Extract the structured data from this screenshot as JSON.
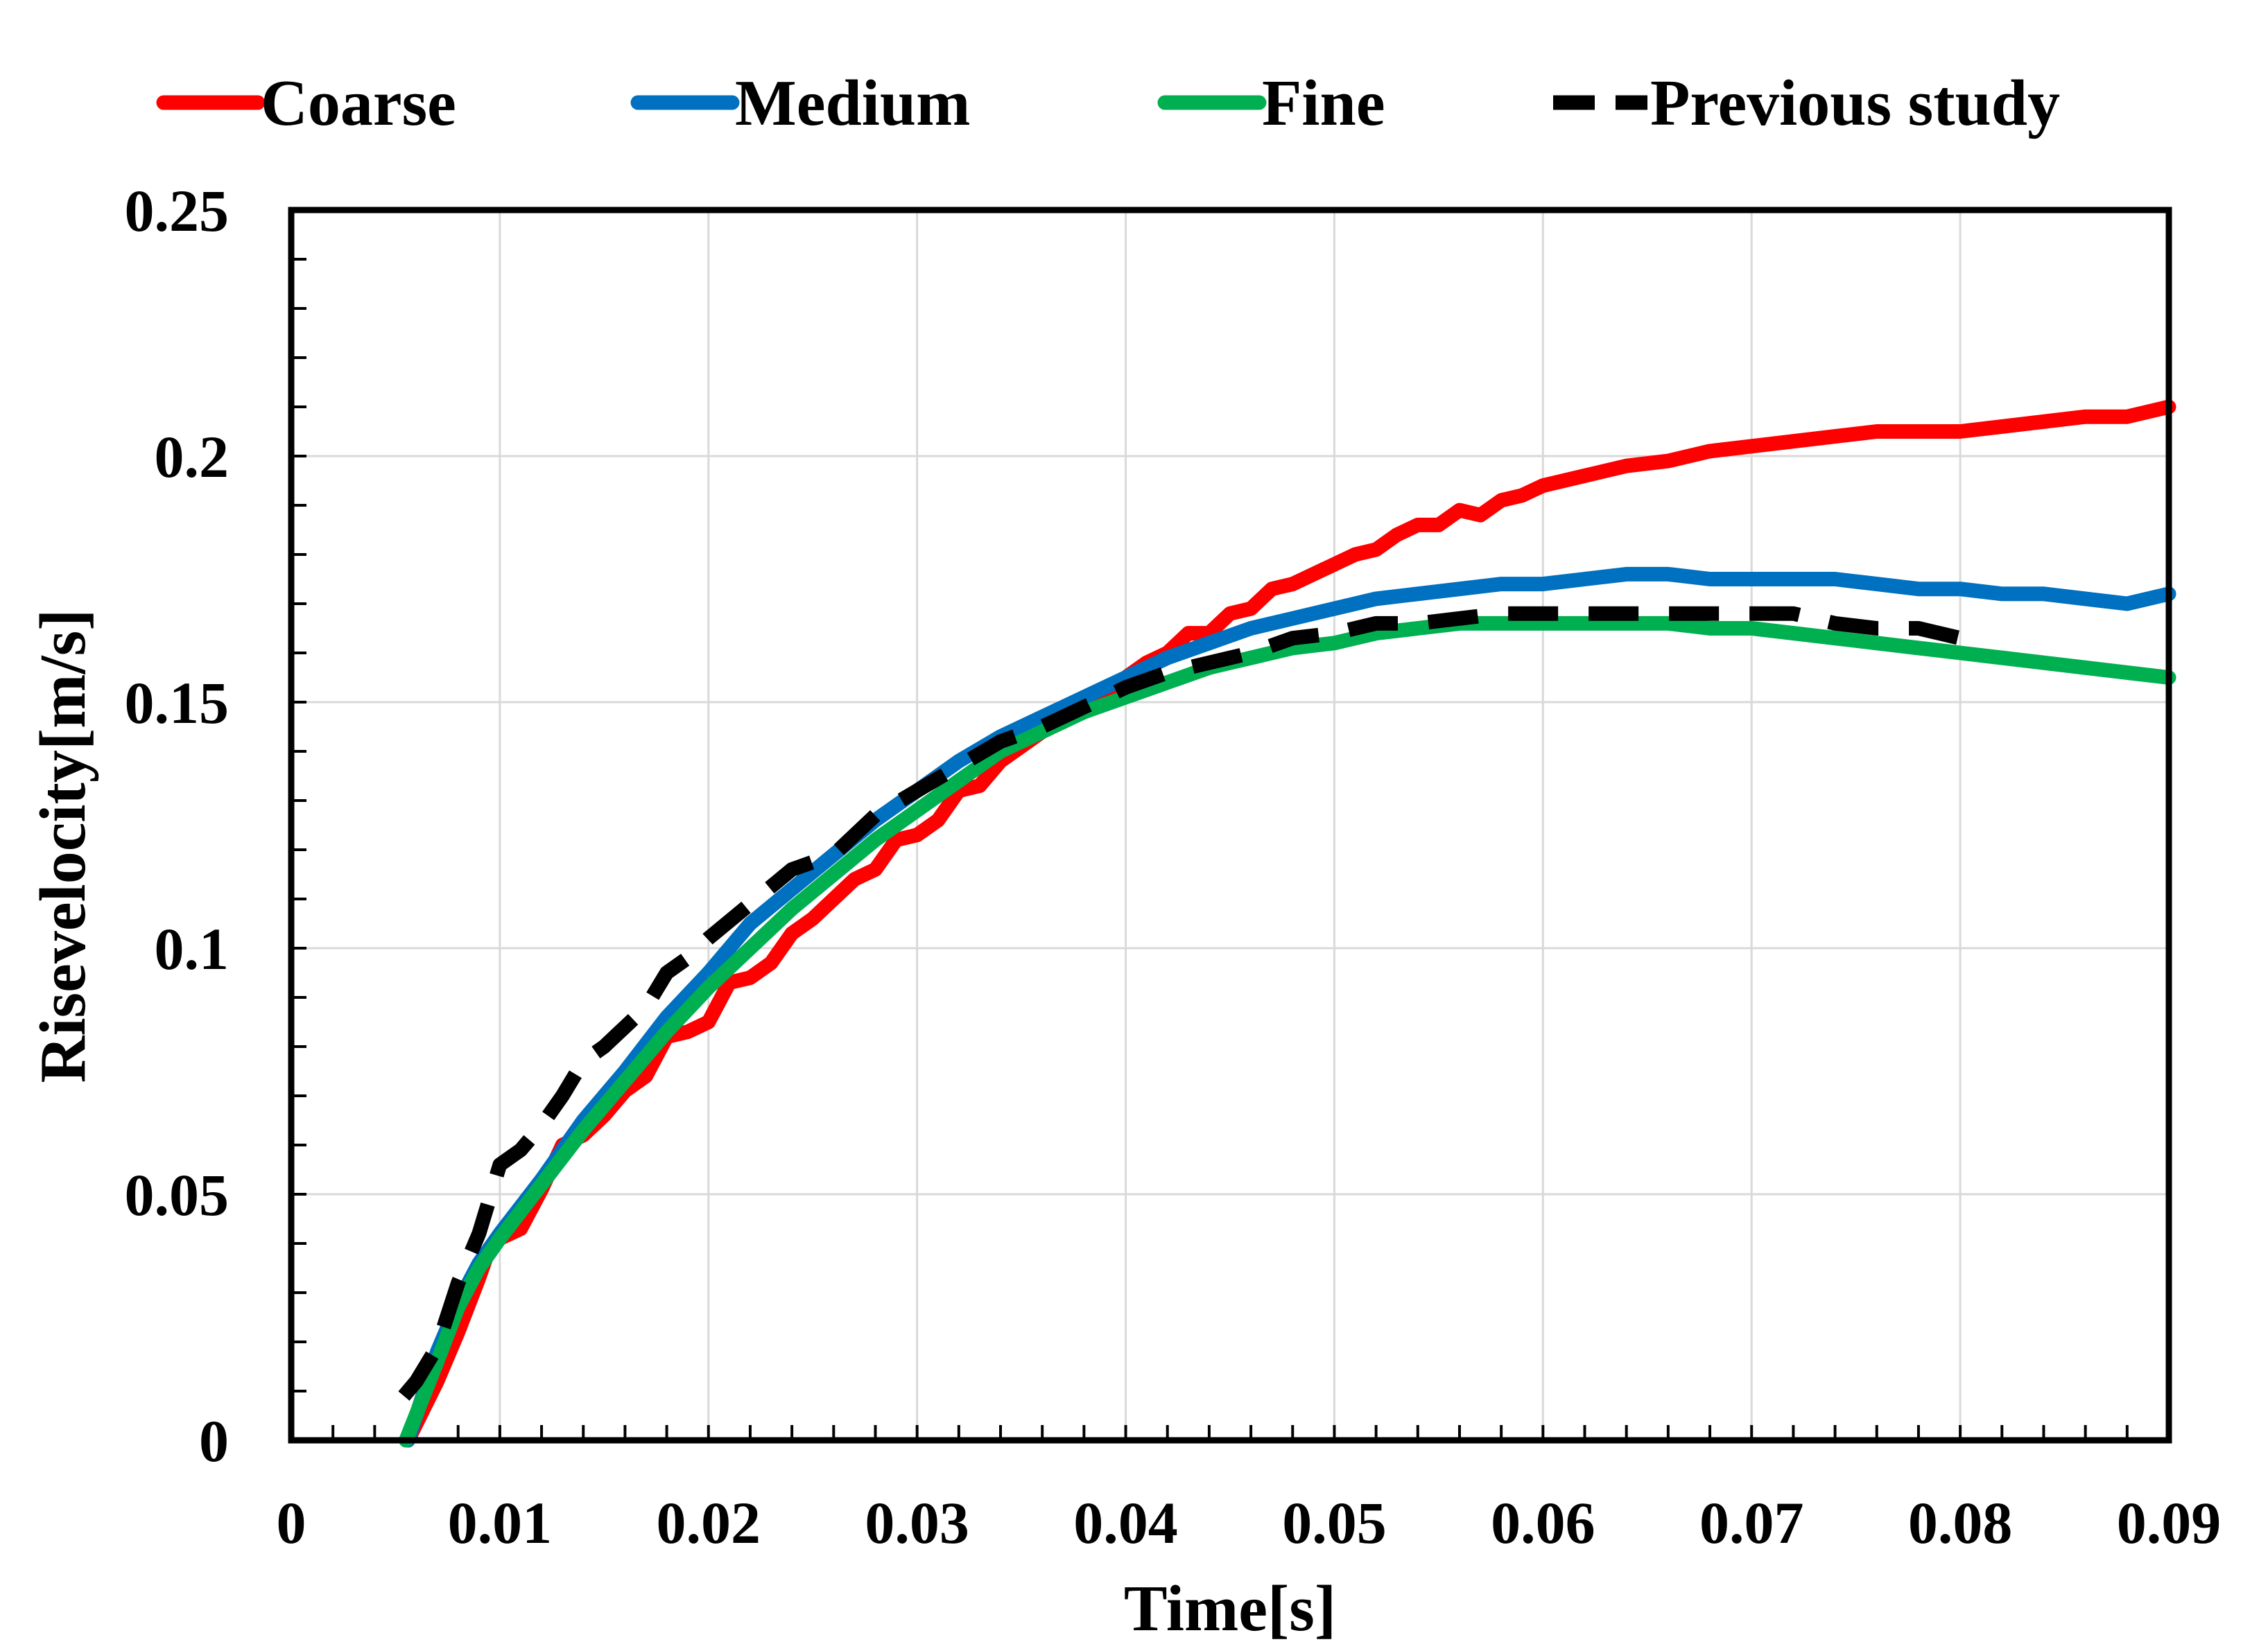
{
  "chart_data": {
    "type": "line",
    "title": "",
    "xlabel": "Time[s]",
    "ylabel": "Risevelocity[m/s]",
    "xlim": [
      0,
      0.09
    ],
    "ylim": [
      0,
      0.25
    ],
    "x_ticks": [
      0,
      0.01,
      0.02,
      0.03,
      0.04,
      0.05,
      0.06,
      0.07,
      0.08,
      0.09
    ],
    "x_tick_labels": [
      "0",
      "0.01",
      "0.02",
      "0.03",
      "0.04",
      "0.05",
      "0.06",
      "0.07",
      "0.08",
      "0.09"
    ],
    "y_ticks": [
      0,
      0.05,
      0.1,
      0.15,
      0.2,
      0.25
    ],
    "y_tick_labels": [
      "0",
      "0.05",
      "0.1",
      "0.15",
      "0.2",
      "0.25"
    ],
    "grid": true,
    "legend_position": "top",
    "series": [
      {
        "name": "Coarse",
        "color": "#ff0000",
        "style": "solid",
        "x": [
          0.0056,
          0.007,
          0.008,
          0.009,
          0.0095,
          0.01,
          0.011,
          0.012,
          0.013,
          0.014,
          0.015,
          0.016,
          0.017,
          0.018,
          0.019,
          0.02,
          0.021,
          0.022,
          0.023,
          0.024,
          0.025,
          0.026,
          0.027,
          0.028,
          0.029,
          0.03,
          0.031,
          0.032,
          0.033,
          0.034,
          0.035,
          0.036,
          0.037,
          0.038,
          0.039,
          0.04,
          0.041,
          0.042,
          0.043,
          0.044,
          0.045,
          0.046,
          0.047,
          0.048,
          0.049,
          0.05,
          0.051,
          0.052,
          0.053,
          0.054,
          0.055,
          0.056,
          0.057,
          0.058,
          0.059,
          0.06,
          0.062,
          0.064,
          0.066,
          0.068,
          0.07,
          0.072,
          0.074,
          0.076,
          0.078,
          0.08,
          0.082,
          0.084,
          0.086,
          0.088,
          0.09
        ],
        "y": [
          0,
          0.012,
          0.022,
          0.033,
          0.039,
          0.041,
          0.043,
          0.051,
          0.06,
          0.062,
          0.066,
          0.071,
          0.074,
          0.082,
          0.083,
          0.085,
          0.093,
          0.094,
          0.097,
          0.103,
          0.106,
          0.11,
          0.114,
          0.116,
          0.122,
          0.123,
          0.126,
          0.132,
          0.133,
          0.138,
          0.141,
          0.144,
          0.146,
          0.15,
          0.152,
          0.155,
          0.158,
          0.16,
          0.164,
          0.164,
          0.168,
          0.169,
          0.173,
          0.174,
          0.176,
          0.178,
          0.18,
          0.181,
          0.184,
          0.186,
          0.186,
          0.189,
          0.188,
          0.191,
          0.192,
          0.194,
          0.196,
          0.198,
          0.199,
          0.201,
          0.202,
          0.203,
          0.204,
          0.205,
          0.205,
          0.205,
          0.206,
          0.207,
          0.208,
          0.208,
          0.21
        ]
      },
      {
        "name": "Medium",
        "color": "#0070c0",
        "style": "solid",
        "x": [
          0.0056,
          0.007,
          0.008,
          0.009,
          0.01,
          0.012,
          0.014,
          0.016,
          0.018,
          0.02,
          0.022,
          0.024,
          0.026,
          0.028,
          0.03,
          0.032,
          0.034,
          0.036,
          0.038,
          0.04,
          0.042,
          0.044,
          0.046,
          0.048,
          0.05,
          0.052,
          0.054,
          0.056,
          0.058,
          0.06,
          0.062,
          0.064,
          0.066,
          0.068,
          0.07,
          0.072,
          0.074,
          0.076,
          0.078,
          0.08,
          0.082,
          0.084,
          0.086,
          0.088,
          0.09
        ],
        "y": [
          0,
          0.018,
          0.028,
          0.036,
          0.042,
          0.053,
          0.065,
          0.075,
          0.086,
          0.095,
          0.105,
          0.112,
          0.119,
          0.126,
          0.132,
          0.138,
          0.143,
          0.147,
          0.151,
          0.155,
          0.159,
          0.162,
          0.165,
          0.167,
          0.169,
          0.171,
          0.172,
          0.173,
          0.174,
          0.174,
          0.175,
          0.176,
          0.176,
          0.175,
          0.175,
          0.175,
          0.175,
          0.174,
          0.173,
          0.173,
          0.172,
          0.172,
          0.171,
          0.17,
          0.172
        ]
      },
      {
        "name": "Fine",
        "color": "#00b050",
        "style": "solid",
        "x": [
          0.0055,
          0.007,
          0.008,
          0.009,
          0.01,
          0.012,
          0.014,
          0.016,
          0.018,
          0.02,
          0.022,
          0.024,
          0.026,
          0.028,
          0.03,
          0.032,
          0.034,
          0.036,
          0.038,
          0.04,
          0.042,
          0.044,
          0.046,
          0.048,
          0.05,
          0.052,
          0.054,
          0.056,
          0.058,
          0.06,
          0.062,
          0.064,
          0.066,
          0.068,
          0.07,
          0.072,
          0.074,
          0.076,
          0.078,
          0.08,
          0.082,
          0.084,
          0.086,
          0.088,
          0.09
        ],
        "y": [
          0,
          0.016,
          0.027,
          0.035,
          0.041,
          0.052,
          0.063,
          0.073,
          0.083,
          0.092,
          0.1,
          0.108,
          0.115,
          0.122,
          0.128,
          0.134,
          0.14,
          0.144,
          0.148,
          0.151,
          0.154,
          0.157,
          0.159,
          0.161,
          0.162,
          0.164,
          0.165,
          0.166,
          0.166,
          0.166,
          0.166,
          0.166,
          0.166,
          0.165,
          0.165,
          0.164,
          0.163,
          0.162,
          0.161,
          0.16,
          0.159,
          0.158,
          0.157,
          0.156,
          0.155
        ]
      },
      {
        "name": "Previous study",
        "color": "#000000",
        "style": "dashed",
        "x": [
          0.0054,
          0.006,
          0.007,
          0.008,
          0.009,
          0.01,
          0.011,
          0.012,
          0.013,
          0.014,
          0.015,
          0.016,
          0.017,
          0.018,
          0.019,
          0.02,
          0.022,
          0.024,
          0.026,
          0.028,
          0.03,
          0.032,
          0.034,
          0.036,
          0.038,
          0.04,
          0.042,
          0.044,
          0.046,
          0.048,
          0.05,
          0.052,
          0.054,
          0.056,
          0.058,
          0.06,
          0.062,
          0.064,
          0.066,
          0.068,
          0.07,
          0.072,
          0.074,
          0.076,
          0.078,
          0.08
        ],
        "y": [
          0.009,
          0.012,
          0.019,
          0.032,
          0.042,
          0.056,
          0.059,
          0.064,
          0.07,
          0.077,
          0.08,
          0.084,
          0.088,
          0.095,
          0.098,
          0.102,
          0.109,
          0.116,
          0.119,
          0.127,
          0.132,
          0.137,
          0.142,
          0.145,
          0.149,
          0.153,
          0.156,
          0.158,
          0.16,
          0.163,
          0.164,
          0.166,
          0.166,
          0.167,
          0.168,
          0.168,
          0.168,
          0.168,
          0.168,
          0.168,
          0.168,
          0.168,
          0.166,
          0.165,
          0.165,
          0.163
        ]
      }
    ]
  }
}
